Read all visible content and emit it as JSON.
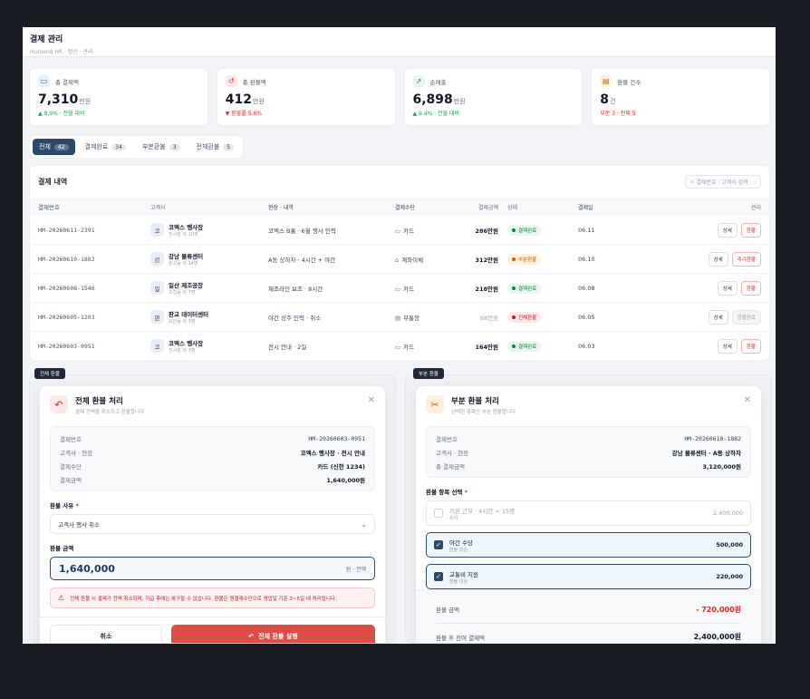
{
  "header": {
    "title": "결제 관리",
    "breadcrumb": "Humend HR · 정산 · 관리"
  },
  "stats": [
    {
      "label": "총 결제액",
      "value": "7,310",
      "unit": "만원",
      "sub": "▲ 8.9% · 전월 대비",
      "tone": "g",
      "icon": "▭",
      "icon_bg": "#e8f0fb",
      "icon_color": "#2b5a9b"
    },
    {
      "label": "총 환불액",
      "value": "412",
      "unit": "만원",
      "sub": "▼ 환불률 5.6%",
      "tone": "r",
      "icon": "↺",
      "icon_bg": "#fde8e8",
      "icon_color": "#dc2626"
    },
    {
      "label": "순매출",
      "value": "6,898",
      "unit": "만원",
      "sub": "▲ 9.4% · 전월 대비",
      "tone": "g",
      "icon": "↗",
      "icon_bg": "#e6f6ec",
      "icon_color": "#15803d"
    },
    {
      "label": "환불 건수",
      "value": "8",
      "unit": "건",
      "sub": "부분 3 · 전체 5",
      "tone": "r",
      "icon": "▤",
      "icon_bg": "#fdf0dd",
      "icon_color": "#c2620b"
    }
  ],
  "tabs": [
    {
      "label": "전체",
      "count": "42"
    },
    {
      "label": "결제완료",
      "count": "34"
    },
    {
      "label": "부분환불",
      "count": "3"
    },
    {
      "label": "전체환불",
      "count": "5"
    }
  ],
  "table": {
    "title": "결제 내역",
    "search_placeholder": "결제번호 · 고객사 검색",
    "columns": [
      "결제번호",
      "고객사",
      "현장 · 내역",
      "결제수단",
      "결제금액",
      "상태",
      "결제일",
      "관리"
    ],
    "rows": [
      {
        "id": "HM-20260611-2391",
        "avatar": "코",
        "company": "코엑스 행사장",
        "company_sub": "전시장 외 10명",
        "detail": "코엑스 B홀 · 6월 행사 인력",
        "method": "카드",
        "method_icon": "▭",
        "amount": "286만원",
        "status": "결제완료",
        "status_type": "ok",
        "date": "06.11",
        "actions": [
          {
            "label": "상세",
            "type": "s"
          },
          {
            "label": "환불",
            "type": "r"
          }
        ]
      },
      {
        "id": "HM-20260610-1882",
        "avatar": "강",
        "company": "강남 물류센터",
        "company_sub": "창고동 외 14명",
        "detail": "A동 상하차 · 4시간 + 야간",
        "method": "계좌이체",
        "method_icon": "⌂",
        "amount": "312만원",
        "status": "부분환불",
        "status_type": "part",
        "date": "06.10",
        "actions": [
          {
            "label": "상세",
            "type": "s"
          },
          {
            "label": "추가환불",
            "type": "r"
          }
        ]
      },
      {
        "id": "HM-20260608-1546",
        "avatar": "일",
        "company": "일산 제조공장",
        "company_sub": "조립동 외 7명",
        "detail": "제조라인 보조 · 8시간",
        "method": "카드",
        "method_icon": "▭",
        "amount": "218만원",
        "status": "결제완료",
        "status_type": "ok",
        "date": "06.08",
        "actions": [
          {
            "label": "상세",
            "type": "s"
          },
          {
            "label": "환불",
            "type": "r"
          }
        ]
      },
      {
        "id": "HM-20260605-1203",
        "avatar": "판",
        "company": "판교 데이터센터",
        "company_sub": "보안동 외 3명",
        "detail": "야간 상주 인력 · 취소",
        "method": "무통장",
        "method_icon": "▤",
        "amount": "98만원",
        "status": "전체환불",
        "status_type": "full",
        "date": "06.05",
        "actions": [
          {
            "label": "상세",
            "type": "s"
          },
          {
            "label": "환불완료",
            "type": "g"
          }
        ]
      },
      {
        "id": "HM-20260603-0951",
        "avatar": "코",
        "company": "코엑스 행사장",
        "company_sub": "전시장 외 3명",
        "detail": "전시 안내 · 2일",
        "method": "카드",
        "method_icon": "▭",
        "amount": "164만원",
        "status": "결제완료",
        "status_type": "ok",
        "date": "06.03",
        "actions": [
          {
            "label": "상세",
            "type": "s"
          },
          {
            "label": "환불",
            "type": "r"
          }
        ]
      }
    ]
  },
  "full_refund": {
    "tag": "전체 환불",
    "title": "전체 환불 처리",
    "subtitle": "결제 전액을 취소하고 환불합니다",
    "info": [
      {
        "k": "결제번호",
        "v": "HM-20260603-0951",
        "mono": true
      },
      {
        "k": "고객사 · 현장",
        "v": "코엑스 행사장 · 전시 안내"
      },
      {
        "k": "결제수단",
        "v": "카드 (신한 1234)"
      },
      {
        "k": "결제금액",
        "v": "1,640,000원"
      }
    ],
    "reason_label": "환불 사유",
    "reason_value": "고객사 행사 취소",
    "amount_label": "환불 금액",
    "amount_value": "1,640,000",
    "amount_unit": "원 · 전액",
    "warning": "전체 환불 시 결제가 전액 취소되며, 지급 후에는 복구할 수 없습니다. 환불은 원결제수단으로 영업일 기준 3~5일 내 처리됩니다.",
    "cancel": "취소",
    "execute": "전체 환불 실행"
  },
  "partial_refund": {
    "tag": "부분 환불",
    "title": "부분 환불 처리",
    "subtitle": "선택한 항목만 부분 환불합니다",
    "info": [
      {
        "k": "결제번호",
        "v": "HM-20260610-1882",
        "mono": true
      },
      {
        "k": "고객사 · 현장",
        "v": "강남 물류센터 · A동 상하차"
      },
      {
        "k": "총 결제금액",
        "v": "3,120,000원"
      }
    ],
    "items_label": "환불 항목 선택",
    "items": [
      {
        "name": "기본 근무 · 4시간 × 15명",
        "sub": "유지",
        "amount": "2,400,000",
        "selected": false
      },
      {
        "name": "야간 수당",
        "sub": "환불 대상",
        "amount": "500,000",
        "selected": true
      },
      {
        "name": "교통비 지원",
        "sub": "환불 대상",
        "amount": "220,000",
        "selected": true
      }
    ],
    "refund_label": "환불 금액",
    "refund_value": "- 720,000원",
    "remain_label": "환불 후 잔여 결제액",
    "remain_value": "2,400,000원"
  }
}
